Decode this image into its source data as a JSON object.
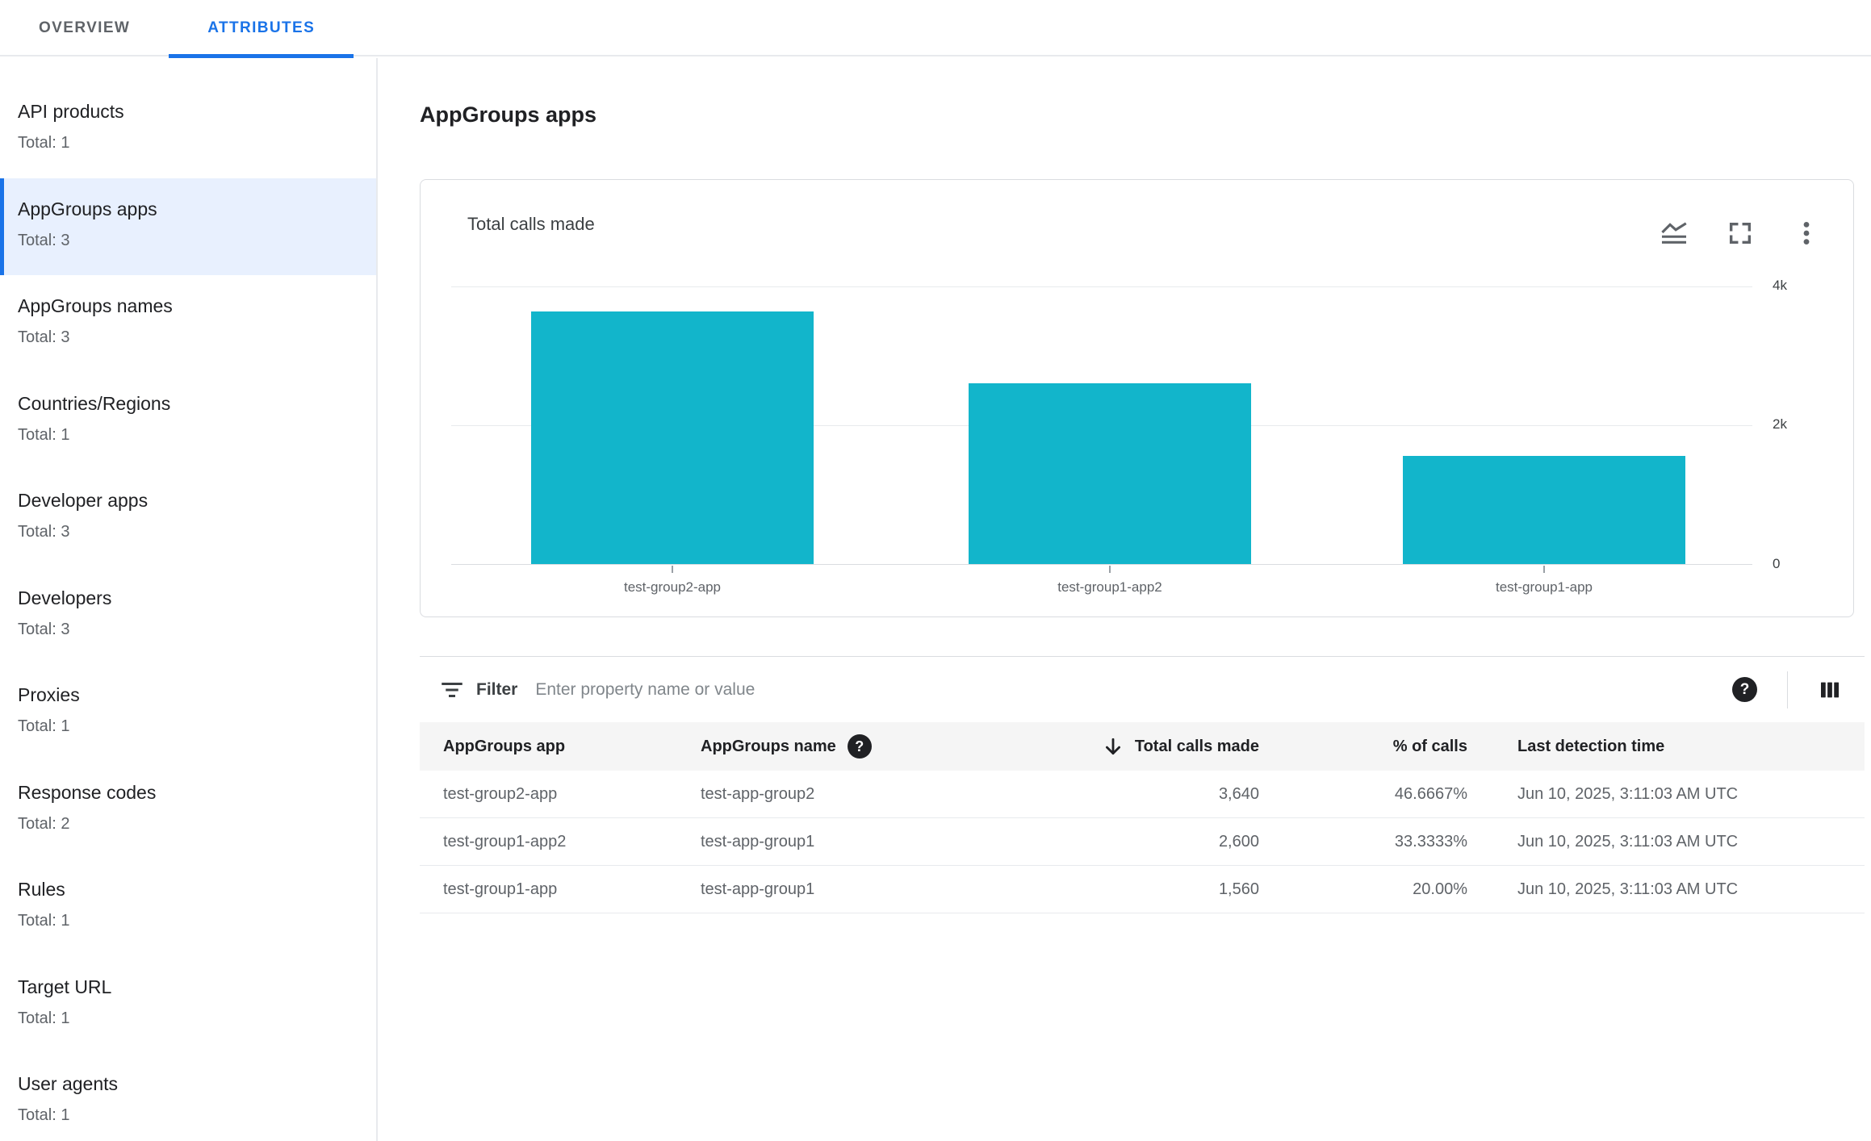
{
  "tabs": [
    {
      "label": "OVERVIEW",
      "active": false
    },
    {
      "label": "ATTRIBUTES",
      "active": true
    }
  ],
  "sidebar": {
    "items": [
      {
        "label": "API products",
        "total": "Total: 1",
        "selected": false
      },
      {
        "label": "AppGroups apps",
        "total": "Total: 3",
        "selected": true
      },
      {
        "label": "AppGroups names",
        "total": "Total: 3",
        "selected": false
      },
      {
        "label": "Countries/Regions",
        "total": "Total: 1",
        "selected": false
      },
      {
        "label": "Developer apps",
        "total": "Total: 3",
        "selected": false
      },
      {
        "label": "Developers",
        "total": "Total: 3",
        "selected": false
      },
      {
        "label": "Proxies",
        "total": "Total: 1",
        "selected": false
      },
      {
        "label": "Response codes",
        "total": "Total: 2",
        "selected": false
      },
      {
        "label": "Rules",
        "total": "Total: 1",
        "selected": false
      },
      {
        "label": "Target URL",
        "total": "Total: 1",
        "selected": false
      },
      {
        "label": "User agents",
        "total": "Total: 1",
        "selected": false
      }
    ]
  },
  "main": {
    "title": "AppGroups apps"
  },
  "chart_card": {
    "title": "Total calls made",
    "icons": [
      "chart-type-icon",
      "fullscreen-icon",
      "more-options-icon"
    ]
  },
  "chart_data": {
    "type": "bar",
    "categories": [
      "test-group2-app",
      "test-group1-app2",
      "test-group1-app"
    ],
    "values": [
      3640,
      2600,
      1560
    ],
    "title": "Total calls made",
    "xlabel": "",
    "ylabel": "",
    "ylim": [
      0,
      4000
    ],
    "yticks": [
      {
        "label": "4k",
        "value": 4000
      },
      {
        "label": "2k",
        "value": 2000
      },
      {
        "label": "0",
        "value": 0
      }
    ],
    "bar_color": "#12b5cb",
    "grid": true,
    "y_axis_position": "right",
    "legend": false
  },
  "filter": {
    "label": "Filter",
    "placeholder": "Enter property name or value"
  },
  "icons": {
    "help_glyph": "?"
  },
  "table": {
    "columns": [
      {
        "label": "AppGroups app",
        "align": "left",
        "help": false,
        "sorted": null
      },
      {
        "label": "AppGroups name",
        "align": "left",
        "help": true,
        "sorted": null
      },
      {
        "label": "Total calls made",
        "align": "right",
        "help": false,
        "sorted": "desc"
      },
      {
        "label": "% of calls",
        "align": "right",
        "help": false,
        "sorted": null
      },
      {
        "label": "Last detection time",
        "align": "left",
        "help": false,
        "sorted": null
      }
    ],
    "rows": [
      {
        "app": "test-group2-app",
        "name": "test-app-group2",
        "calls": "3,640",
        "pct": "46.6667%",
        "time": "Jun 10, 2025, 3:11:03 AM UTC"
      },
      {
        "app": "test-group1-app2",
        "name": "test-app-group1",
        "calls": "2,600",
        "pct": "33.3333%",
        "time": "Jun 10, 2025, 3:11:03 AM UTC"
      },
      {
        "app": "test-group1-app",
        "name": "test-app-group1",
        "calls": "1,560",
        "pct": "20.00%",
        "time": "Jun 10, 2025, 3:11:03 AM UTC"
      }
    ]
  },
  "colors": {
    "accent": "#1a73e8",
    "bar": "#12b5cb",
    "selected_item_bg": "#e8f0fe",
    "text_primary": "#202124",
    "text_secondary": "#5f6368",
    "border": "#dadce0",
    "table_header_bg": "#f5f5f5"
  }
}
